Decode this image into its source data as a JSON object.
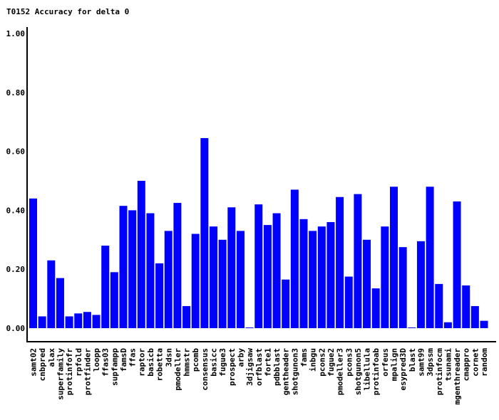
{
  "chart_data": {
    "type": "bar",
    "title": "T0152 Accuracy for delta 0",
    "xlabel": "",
    "ylabel": "",
    "ylim": [
      0,
      1.0
    ],
    "yticks": [
      "0.00",
      "0.20",
      "0.40",
      "0.60",
      "0.80",
      "1.00"
    ],
    "grid": false,
    "bar_color": "#0000ff",
    "categories": [
      "samt02",
      "cnbpred",
      "alax",
      "superfamily",
      "protinfofr",
      "rpfold",
      "protfinder",
      "loopp",
      "ffas03",
      "supfampp",
      "famsD",
      "ffas",
      "raptor",
      "basicb",
      "robetta",
      "3dsn",
      "pmodeller",
      "hmmstr",
      "pcomb",
      "consensus",
      "basicc",
      "fugue3",
      "prospect",
      "arby",
      "3djigsaw",
      "orfblast",
      "forte1",
      "pdbblast",
      "gentheader",
      "shotgunon3",
      "fams",
      "inbgu",
      "pcons2",
      "fugue2",
      "pmodeller3",
      "pcons3",
      "shotgunon5",
      "libellula",
      "protinfoab",
      "orfeus",
      "mpalign",
      "esypred3D",
      "blast",
      "samt99",
      "3dpssm",
      "protinfocm",
      "tsunami",
      "mgenthreader",
      "cmappro",
      "cornet",
      "random"
    ],
    "values": [
      0.44,
      0.04,
      0.23,
      0.17,
      0.04,
      0.05,
      0.055,
      0.045,
      0.28,
      0.19,
      0.415,
      0.4,
      0.5,
      0.39,
      0.22,
      0.33,
      0.425,
      0.075,
      0.32,
      0.645,
      0.345,
      0.3,
      0.41,
      0.33,
      0.0,
      0.42,
      0.35,
      0.39,
      0.165,
      0.47,
      0.37,
      0.33,
      0.345,
      0.36,
      0.445,
      0.175,
      0.455,
      0.3,
      0.135,
      0.345,
      0.48,
      0.275,
      0.0,
      0.295,
      0.48,
      0.15,
      0.02,
      0.43,
      0.145,
      0.075,
      0.025
    ]
  }
}
